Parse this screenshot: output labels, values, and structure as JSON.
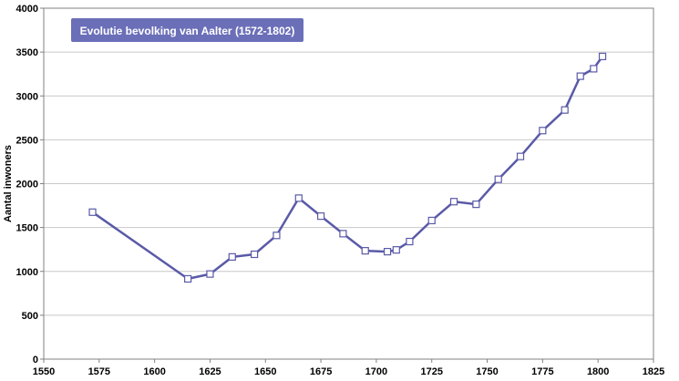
{
  "chart_data": {
    "type": "line",
    "title": "Evolutie bevolking van Aalter (1572-1802)",
    "xlabel": "",
    "ylabel": "Aantal inwoners",
    "xlim": [
      1550,
      1825
    ],
    "ylim": [
      0,
      4000
    ],
    "xticks": [
      1550,
      1575,
      1600,
      1625,
      1650,
      1675,
      1700,
      1725,
      1750,
      1775,
      1800,
      1825
    ],
    "yticks": [
      0,
      500,
      1000,
      1500,
      2000,
      2500,
      3000,
      3500,
      4000
    ],
    "grid": true,
    "legend": "none",
    "series": [
      {
        "color": "#5a5aa8",
        "points": [
          {
            "x": 1572,
            "y": 1675
          },
          {
            "x": 1615,
            "y": 915
          },
          {
            "x": 1625,
            "y": 970
          },
          {
            "x": 1635,
            "y": 1165
          },
          {
            "x": 1645,
            "y": 1195
          },
          {
            "x": 1655,
            "y": 1410
          },
          {
            "x": 1665,
            "y": 1835
          },
          {
            "x": 1675,
            "y": 1630
          },
          {
            "x": 1685,
            "y": 1430
          },
          {
            "x": 1695,
            "y": 1235
          },
          {
            "x": 1705,
            "y": 1225
          },
          {
            "x": 1709,
            "y": 1245
          },
          {
            "x": 1715,
            "y": 1340
          },
          {
            "x": 1725,
            "y": 1580
          },
          {
            "x": 1735,
            "y": 1795
          },
          {
            "x": 1745,
            "y": 1765
          },
          {
            "x": 1755,
            "y": 2050
          },
          {
            "x": 1765,
            "y": 2310
          },
          {
            "x": 1775,
            "y": 2605
          },
          {
            "x": 1785,
            "y": 2840
          },
          {
            "x": 1792,
            "y": 3225
          },
          {
            "x": 1798,
            "y": 3310
          },
          {
            "x": 1802,
            "y": 3450
          }
        ]
      }
    ]
  },
  "colors": {
    "line": "#5a5aa8",
    "title_box": "#6b6fb8",
    "grid": "#c8c8c8"
  }
}
